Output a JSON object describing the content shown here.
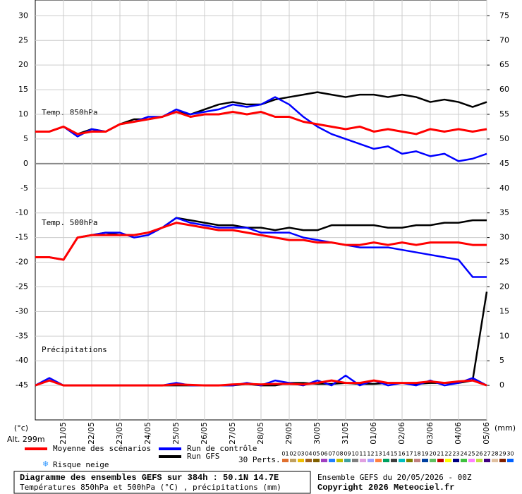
{
  "chart_data": {
    "type": "line",
    "ylim": [
      -52,
      33.2
    ],
    "yticks": [
      -45,
      -40,
      -35,
      -30,
      -25,
      -20,
      -15,
      -10,
      -5,
      0,
      5,
      10,
      15,
      20,
      25,
      30
    ],
    "y2lim": [
      -7,
      78.2
    ],
    "y2ticks": [
      0,
      5,
      10,
      15,
      20,
      25,
      30,
      35,
      40,
      45,
      50,
      55,
      60,
      65,
      70,
      75
    ],
    "xlim": [
      0,
      384
    ],
    "x": [
      0,
      12,
      24,
      36,
      48,
      60,
      72,
      84,
      96,
      108,
      120,
      132,
      144,
      156,
      168,
      180,
      192,
      204,
      216,
      228,
      240,
      252,
      264,
      276,
      288,
      300,
      312,
      324,
      336,
      348,
      360,
      372,
      384
    ],
    "xticks": [
      {
        "value": 24,
        "label": "21/05"
      },
      {
        "value": 48,
        "label": "22/05"
      },
      {
        "value": 72,
        "label": "23/05"
      },
      {
        "value": 96,
        "label": "24/05"
      },
      {
        "value": 120,
        "label": "25/05"
      },
      {
        "value": 144,
        "label": "26/05"
      },
      {
        "value": 168,
        "label": "27/05"
      },
      {
        "value": 192,
        "label": "28/05"
      },
      {
        "value": 216,
        "label": "29/05"
      },
      {
        "value": 240,
        "label": "30/05"
      },
      {
        "value": 264,
        "label": "31/05"
      },
      {
        "value": 288,
        "label": "01/06"
      },
      {
        "value": 312,
        "label": "02/06"
      },
      {
        "value": 336,
        "label": "03/06"
      },
      {
        "value": 360,
        "label": "04/06"
      },
      {
        "value": 384,
        "label": "05/06"
      }
    ],
    "grid": true,
    "ylabel": "(°c)",
    "y2label": "(mm)",
    "altitude": "Alt. 299m",
    "panel_labels": [
      "Temp. 850hPa",
      "Temp. 500hPa",
      "Précipitations"
    ],
    "series": [
      {
        "name": "Moyenne des scénarios",
        "color": "#ff0000",
        "t850": [
          6.5,
          6.5,
          7.5,
          6,
          6.5,
          6.5,
          8,
          8.5,
          9,
          9.5,
          10.5,
          9.5,
          10,
          10,
          10.5,
          10,
          10.5,
          9.5,
          9.5,
          8.5,
          8,
          7.5,
          7,
          7.5,
          6.5,
          7,
          6.5,
          6,
          7,
          6.5,
          7,
          6.5,
          7
        ],
        "t500": [
          -19,
          -19,
          -19.5,
          -15,
          -14.5,
          -14.5,
          -14.5,
          -14.5,
          -14,
          -13,
          -12,
          -12.5,
          -13,
          -13.5,
          -13.5,
          -14,
          -14.5,
          -15,
          -15.5,
          -15.5,
          -16,
          -16,
          -16.5,
          -16.5,
          -16,
          -16.5,
          -16,
          -16.5,
          -16,
          -16,
          -16,
          -16.5,
          -16.5
        ],
        "precip": [
          0,
          1,
          0,
          0,
          0,
          0,
          0,
          0,
          0,
          0,
          0.2,
          0.1,
          0,
          0,
          0.2,
          0.3,
          0.2,
          0.3,
          0.3,
          0.2,
          0.5,
          1,
          0.5,
          0.5,
          1,
          0.5,
          0.5,
          0.5,
          0.8,
          0.5,
          0.8,
          1,
          0
        ]
      },
      {
        "name": "Run de contrôle",
        "color": "#0000ff",
        "t850": [
          6.5,
          6.5,
          7.5,
          5.5,
          7,
          6.5,
          8,
          8.5,
          9.5,
          9.5,
          11,
          10,
          10.5,
          11,
          12,
          11.5,
          12,
          13.5,
          12,
          9.5,
          7.5,
          6,
          5,
          4,
          3,
          3.5,
          2,
          2.5,
          1.5,
          2,
          0.5,
          1,
          2
        ],
        "t500": [
          -19,
          -19,
          -19.5,
          -15,
          -14.5,
          -14,
          -14,
          -15,
          -14.5,
          -13,
          -11,
          -12,
          -12.5,
          -13,
          -13,
          -13,
          -14,
          -14,
          -14,
          -15,
          -15.5,
          -16,
          -16.5,
          -17,
          -17,
          -17,
          -17.5,
          -18,
          -18.5,
          -19,
          -19.5,
          -23,
          -23
        ],
        "precip": [
          0,
          1.5,
          0,
          0,
          0,
          0,
          0,
          0,
          0,
          0,
          0.5,
          0,
          0,
          0,
          0,
          0.5,
          0,
          1,
          0.5,
          0,
          1,
          0,
          2,
          0,
          1,
          0,
          0.5,
          0,
          1,
          0,
          0.5,
          1.5,
          0
        ]
      },
      {
        "name": "Run GFS",
        "color": "#000000",
        "t850": [
          6.5,
          6.5,
          7.5,
          6,
          7,
          6.5,
          8,
          9,
          9,
          9.5,
          10.5,
          10,
          11,
          12,
          12.5,
          12,
          12,
          13,
          13.5,
          14,
          14.5,
          14,
          13.5,
          14,
          14,
          13.5,
          14,
          13.5,
          12.5,
          13,
          12.5,
          11.5,
          12.5
        ],
        "t500": [
          -19,
          -19,
          -19.5,
          -15,
          -14.5,
          -14,
          -14.5,
          -14.5,
          -14,
          -13,
          -11,
          -11.5,
          -12,
          -12.5,
          -12.5,
          -13,
          -13,
          -13.5,
          -13,
          -13.5,
          -13.5,
          -12.5,
          -12.5,
          -12.5,
          -12.5,
          -13,
          -13,
          -12.5,
          -12.5,
          -12,
          -12,
          -11.5,
          -11.5
        ],
        "precip": [
          0,
          1,
          0,
          0,
          0,
          0,
          0,
          0,
          0,
          0,
          0,
          0,
          0,
          0,
          0,
          0.3,
          0,
          0,
          0.5,
          0.5,
          0.3,
          0.3,
          0.5,
          0.3,
          0.3,
          0.5,
          0.5,
          0.3,
          0.5,
          0.5,
          0.5,
          1,
          19
        ]
      }
    ],
    "snow_label": "Risque neige",
    "perturbations_label": "30 Perts.",
    "perturbations": [
      {
        "name": "01",
        "color": "#e07030"
      },
      {
        "name": "02",
        "color": "#c0a060"
      },
      {
        "name": "03",
        "color": "#f0c000"
      },
      {
        "name": "04",
        "color": "#a06020"
      },
      {
        "name": "05",
        "color": "#806000"
      },
      {
        "name": "06",
        "color": "#a040c0"
      },
      {
        "name": "07",
        "color": "#2080ff"
      },
      {
        "name": "08",
        "color": "#c0c000"
      },
      {
        "name": "09",
        "color": "#40a0a0"
      },
      {
        "name": "10",
        "color": "#808080"
      },
      {
        "name": "11",
        "color": "#e0a0e0"
      },
      {
        "name": "12",
        "color": "#a0a0ff"
      },
      {
        "name": "13",
        "color": "#ff8040"
      },
      {
        "name": "14",
        "color": "#00a060"
      },
      {
        "name": "15",
        "color": "#404040"
      },
      {
        "name": "16",
        "color": "#00c0c0"
      },
      {
        "name": "17",
        "color": "#808000"
      },
      {
        "name": "18",
        "color": "#c08080"
      },
      {
        "name": "19",
        "color": "#0040a0"
      },
      {
        "name": "20",
        "color": "#60c060"
      },
      {
        "name": "21",
        "color": "#c00000"
      },
      {
        "name": "22",
        "color": "#ffff00"
      },
      {
        "name": "23",
        "color": "#000080"
      },
      {
        "name": "24",
        "color": "#40c040"
      },
      {
        "name": "25",
        "color": "#ff80ff"
      },
      {
        "name": "26",
        "color": "#c0e040"
      },
      {
        "name": "27",
        "color": "#400080"
      },
      {
        "name": "28",
        "color": "#e0c0a0"
      },
      {
        "name": "29",
        "color": "#802000"
      },
      {
        "name": "30",
        "color": "#0060ff"
      }
    ],
    "footer": {
      "title": "Diagramme des ensembles GEFS sur 384h : 50.1N 14.7E",
      "subtitle": "Températures 850hPa et 500hPa (°C) , précipitations (mm)",
      "run": "Ensemble GEFS du 20/05/2026 - 00Z",
      "copyright": "Copyright 2026 Meteociel.fr"
    }
  }
}
